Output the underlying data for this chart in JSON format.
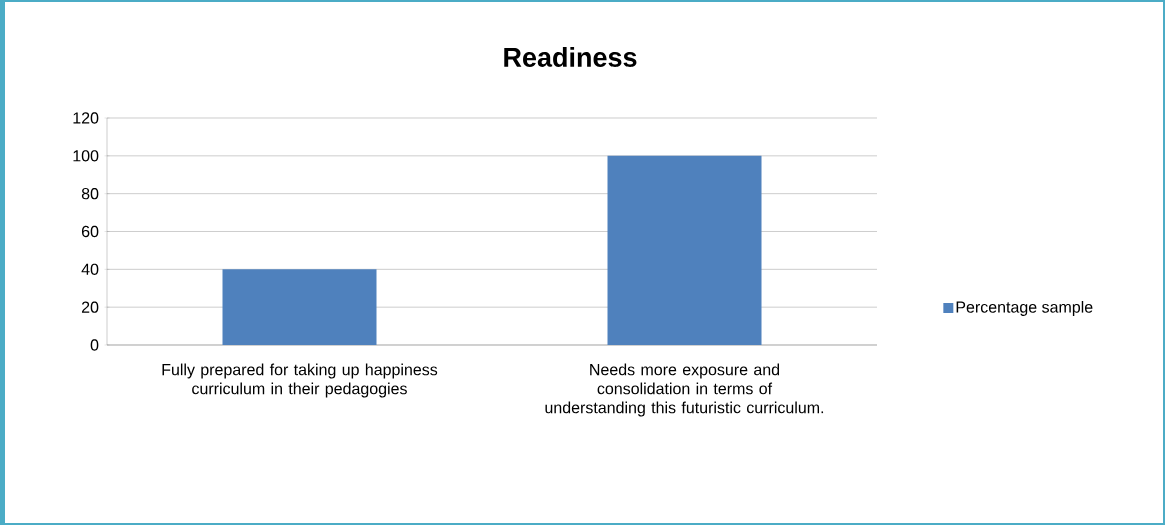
{
  "chart_data": {
    "type": "bar",
    "title": "Readiness",
    "categories": [
      "Fully prepared for taking up happiness curriculum in their pedagogies",
      "Needs more exposure and consolidation in terms of understanding this futuristic curriculum."
    ],
    "series": [
      {
        "name": "Percentage sample",
        "color": "#4f81bd",
        "values": [
          40,
          100
        ]
      }
    ],
    "ylim": [
      0,
      120
    ],
    "yticks": [
      0,
      20,
      40,
      60,
      80,
      100,
      120
    ],
    "grid": "y",
    "legend": "right"
  }
}
